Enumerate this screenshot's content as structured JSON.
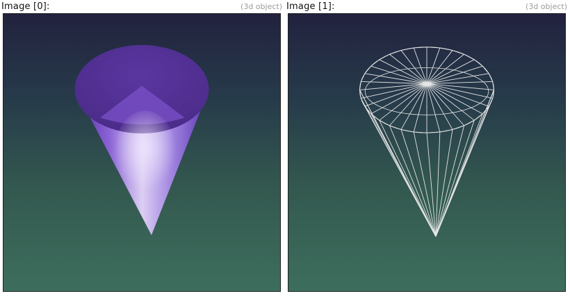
{
  "images": [
    {
      "title": "Image [0]:",
      "tag": "(3d object)",
      "render_mode": "shaded"
    },
    {
      "title": "Image [1]:",
      "tag": "(3d object)",
      "render_mode": "wireframe"
    }
  ],
  "colors": {
    "background_top": "#22223e",
    "background_bottom": "#3d6e5d",
    "cone_purple": "#6a3dbd",
    "cone_highlight": "#ddd0f2",
    "wireframe": "#e6e6e6"
  }
}
